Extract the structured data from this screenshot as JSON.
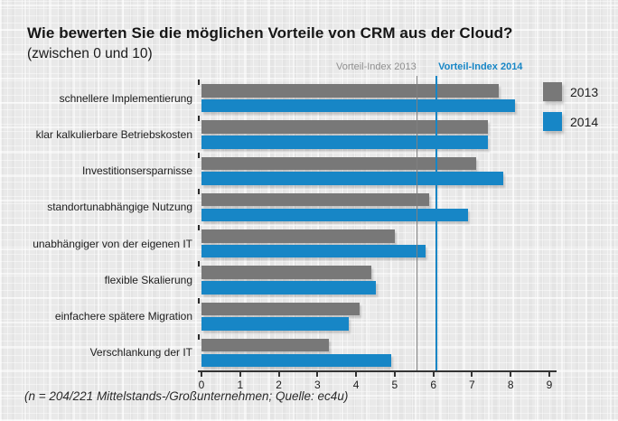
{
  "header": {
    "title": "Wie bewerten Sie die möglichen Vorteile von CRM aus der Cloud?",
    "subtitle": "(zwischen 0 und 10)"
  },
  "footer": {
    "source_note": "(n = 204/221 Mittelstands-/Großunternehmen; Quelle: ec4u)"
  },
  "colors": {
    "background": "#e9e9e9",
    "series_2013": "#787878",
    "series_2014": "#1786c6",
    "axis": "#333333",
    "ref_label_2013": "#8f8f8f",
    "text": "#1e1e1e"
  },
  "chart_data": {
    "type": "bar",
    "orientation": "horizontal",
    "title": "Wie bewerten Sie die möglichen Vorteile von CRM aus der Cloud? (zwischen 0 und 10)",
    "categories": [
      "schnellere Implementierung",
      "klar kalkulierbare Betriebskosten",
      "Investitionsersparnisse",
      "standortunabhängige Nutzung",
      "unabhängiger von der eigenen IT",
      "flexible Skalierung",
      "einfachere spätere Migration",
      "Verschlankung der IT"
    ],
    "series": [
      {
        "name": "2013",
        "color": "#787878",
        "values": [
          7.7,
          7.4,
          7.1,
          5.9,
          5.0,
          4.4,
          4.1,
          3.3
        ]
      },
      {
        "name": "2014",
        "color": "#1786c6",
        "values": [
          8.1,
          7.4,
          7.8,
          6.9,
          5.8,
          4.5,
          3.8,
          4.9
        ]
      }
    ],
    "xlim": [
      0,
      9
    ],
    "x_ticks": [
      0,
      1,
      2,
      3,
      4,
      5,
      6,
      7,
      8,
      9
    ],
    "reference_lines": [
      {
        "label": "Vorteil-Index 2013",
        "value": 5.58,
        "color": "#808080"
      },
      {
        "label": "Vorteil-Index 2014",
        "value": 6.08,
        "color": "#1786c6"
      }
    ],
    "legend": {
      "position": "top-right",
      "entries": [
        "2013",
        "2014"
      ]
    },
    "grid": false
  }
}
